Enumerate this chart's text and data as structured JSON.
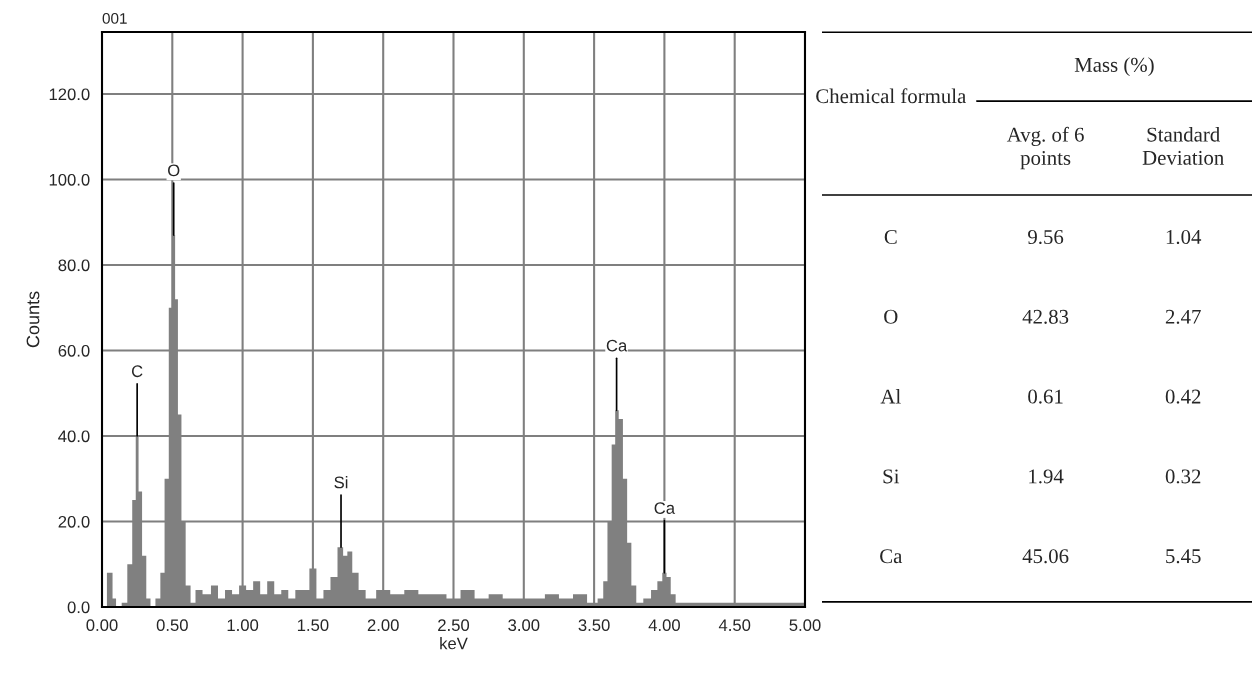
{
  "chart_data": [
    {
      "type": "area",
      "title": "001",
      "xlabel": "keV",
      "ylabel": "Counts",
      "x": [
        0.0,
        0.03,
        0.04,
        0.07,
        0.08,
        0.12,
        0.16,
        0.2,
        0.23,
        0.25,
        0.27,
        0.3,
        0.33,
        0.36,
        0.4,
        0.43,
        0.46,
        0.49,
        0.51,
        0.53,
        0.55,
        0.58,
        0.61,
        0.65,
        0.68,
        0.75,
        0.8,
        0.85,
        0.9,
        0.95,
        1.0,
        1.05,
        1.1,
        1.15,
        1.2,
        1.25,
        1.3,
        1.35,
        1.4,
        1.45,
        1.5,
        1.55,
        1.6,
        1.65,
        1.7,
        1.73,
        1.76,
        1.8,
        1.85,
        1.9,
        2.0,
        2.1,
        2.2,
        2.3,
        2.4,
        2.5,
        2.6,
        2.7,
        2.8,
        2.9,
        3.0,
        3.1,
        3.2,
        3.3,
        3.4,
        3.5,
        3.55,
        3.58,
        3.61,
        3.64,
        3.66,
        3.69,
        3.72,
        3.75,
        3.78,
        3.82,
        3.88,
        3.93,
        3.97,
        4.0,
        4.03,
        4.06,
        4.1,
        4.2,
        4.3,
        4.4,
        4.5,
        4.6,
        4.7,
        4.8,
        4.9,
        5.0
      ],
      "series": [
        {
          "color": "#808080",
          "values": [
            0,
            0,
            8,
            8,
            2,
            0,
            1,
            10,
            25,
            40,
            27,
            12,
            2,
            0,
            2,
            8,
            30,
            70,
            87,
            72,
            45,
            20,
            5,
            1,
            4,
            3,
            5,
            2,
            4,
            3,
            5,
            4,
            6,
            3,
            6,
            3,
            4,
            2,
            4,
            4,
            9,
            2,
            4,
            7,
            14,
            12,
            13,
            8,
            4,
            2,
            4,
            3,
            4,
            3,
            3,
            2,
            4,
            2,
            3,
            2,
            2,
            2,
            3,
            2,
            3,
            1,
            2,
            6,
            20,
            38,
            46,
            44,
            30,
            15,
            5,
            1,
            2,
            4,
            6,
            8,
            7,
            3,
            1,
            1,
            1,
            1,
            1,
            1,
            1,
            1,
            1,
            1
          ]
        }
      ],
      "xlim": [
        0,
        5
      ],
      "ylim": [
        0,
        134.5
      ],
      "xticks": [
        {
          "value": 0,
          "label": "0.00"
        },
        {
          "value": 0.5,
          "label": "0.50"
        },
        {
          "value": 1,
          "label": "1.00"
        },
        {
          "value": 1.5,
          "label": "1.50"
        },
        {
          "value": 2,
          "label": "2.00"
        },
        {
          "value": 2.5,
          "label": "2.50"
        },
        {
          "value": 3,
          "label": "3.00"
        },
        {
          "value": 3.5,
          "label": "3.50"
        },
        {
          "value": 4,
          "label": "4.00"
        },
        {
          "value": 4.5,
          "label": "4.50"
        },
        {
          "value": 5,
          "label": "5.00"
        }
      ],
      "yticks": [
        {
          "value": 0,
          "label": "0.0"
        },
        {
          "value": 20,
          "label": "20.0"
        },
        {
          "value": 40,
          "label": "40.0"
        },
        {
          "value": 60,
          "label": "60.0"
        },
        {
          "value": 80,
          "label": "80.0"
        },
        {
          "value": 100,
          "label": "100.0"
        },
        {
          "value": 120,
          "label": "120.0"
        }
      ],
      "grid": true,
      "annotations": [
        {
          "text": "C",
          "x": 0.25,
          "y": 40
        },
        {
          "text": "O",
          "x": 0.51,
          "y": 87
        },
        {
          "text": "Si",
          "x": 1.7,
          "y": 14
        },
        {
          "text": "Ca",
          "x": 3.66,
          "y": 46
        },
        {
          "text": "Ca",
          "x": 4.0,
          "y": 8
        }
      ]
    },
    {
      "type": "other",
      "title": "Mass (%)",
      "ylabel": "Chemical formula",
      "categories": [
        "Avg. of 6 points",
        "Standard Deviation"
      ],
      "y_categories": [
        "C",
        "O",
        "Al",
        "Si",
        "Ca"
      ],
      "cell_labels": [
        [
          "9.56",
          "1.04"
        ],
        [
          "42.83",
          "2.47"
        ],
        [
          "0.61",
          "0.42"
        ],
        [
          "1.94",
          "0.32"
        ],
        [
          "45.06",
          "5.45"
        ]
      ]
    }
  ]
}
